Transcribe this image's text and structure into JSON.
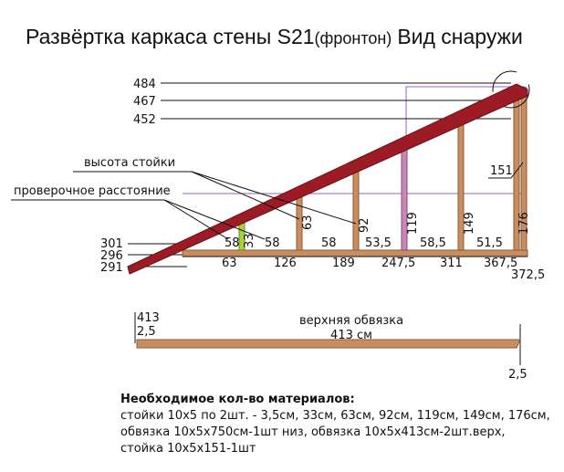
{
  "title": {
    "main": "Развёртка каркаса стены S21",
    "note": "(фронтон)",
    "view": "Вид снаружи"
  },
  "top_heights": [
    "484",
    "467",
    "452"
  ],
  "bottom_heights": [
    "301",
    "296",
    "291"
  ],
  "annotations": {
    "stud_height": "высота стойки",
    "check_distance": "проверочное расстояние"
  },
  "stud_heights": [
    "33",
    "63",
    "92",
    "119",
    "149",
    "176"
  ],
  "extra_stud": "151",
  "spacings": [
    "58",
    "58",
    "58",
    "53,5",
    "58,5",
    "51,5"
  ],
  "positions": [
    "63",
    "126",
    "189",
    "247,5",
    "311",
    "367,5",
    "372,5"
  ],
  "top_plate": {
    "length": "413",
    "left_offset": "2,5",
    "name": "верхняя обвязка",
    "length_label": "413 см",
    "right_offset": "2,5"
  },
  "materials": {
    "heading": "Необходимое кол-во материалов:",
    "lines": [
      "стойки 10х5 по 2шт.  -  3,5см, 33см, 63см, 92см, 119см, 149см, 176см,",
      "обвязка 10х5х750см-1шт низ, обвязка 10х5х413см-2шт.верх,",
      "стойка 10х5х151-1шт"
    ]
  }
}
